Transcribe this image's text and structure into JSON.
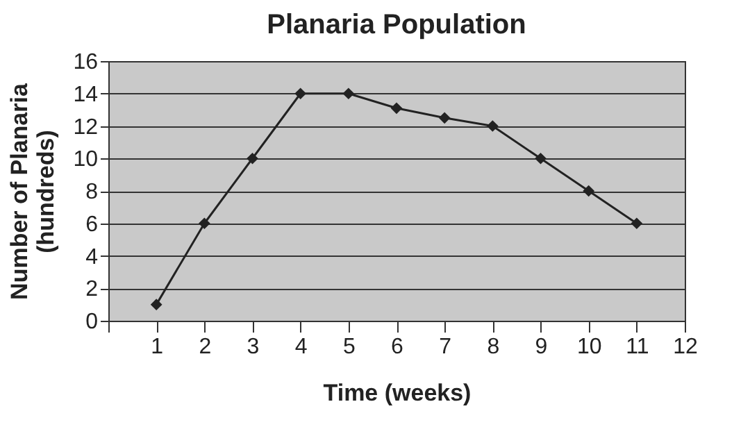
{
  "chart_data": {
    "type": "line",
    "title": "Planaria Population",
    "xlabel": "Time (weeks)",
    "ylabel": "Number of Planaria\n(hundreds)",
    "x": [
      1,
      2,
      3,
      4,
      5,
      6,
      7,
      8,
      9,
      10,
      11
    ],
    "series": [
      {
        "color": "#222222",
        "values": [
          1,
          6,
          10,
          14,
          14,
          13.1,
          12.5,
          12,
          10,
          8,
          6
        ]
      }
    ],
    "xlim": [
      0,
      12
    ],
    "xticks": [
      {
        "value": 0,
        "label": null
      },
      1,
      2,
      3,
      4,
      5,
      6,
      7,
      8,
      9,
      10,
      11,
      12
    ],
    "ylim": [
      0,
      16
    ],
    "yticks": [
      0,
      2,
      4,
      6,
      8,
      10,
      12,
      14,
      16
    ],
    "grid": "y",
    "marker": "diamond",
    "line_style": "solid",
    "legend": false
  }
}
